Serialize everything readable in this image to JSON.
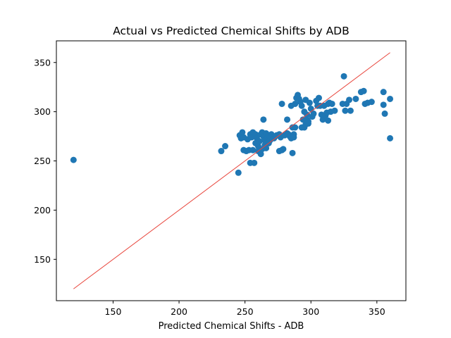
{
  "chart_data": {
    "type": "scatter",
    "title": "Actual vs Predicted Chemical Shifts by ADB",
    "xlabel": "Predicted Chemical Shifts - ADB",
    "ylabel": "",
    "xlim": [
      107,
      372
    ],
    "ylim": [
      108,
      372
    ],
    "xticks": [
      150,
      200,
      250,
      300,
      350
    ],
    "yticks": [
      150,
      200,
      250,
      300,
      350
    ],
    "grid": false,
    "legend": "none",
    "point_color": "#1f77b4",
    "reference_line": {
      "color": "#e8453c",
      "x": [
        120,
        360
      ],
      "y": [
        120,
        360
      ]
    },
    "points": [
      [
        120,
        251
      ],
      [
        232,
        260
      ],
      [
        235,
        265
      ],
      [
        245,
        238
      ],
      [
        246,
        276
      ],
      [
        247,
        273
      ],
      [
        248,
        279
      ],
      [
        249,
        261
      ],
      [
        249,
        274
      ],
      [
        251,
        260
      ],
      [
        252,
        272
      ],
      [
        253,
        261
      ],
      [
        254,
        277
      ],
      [
        254,
        248
      ],
      [
        255,
        274
      ],
      [
        256,
        279
      ],
      [
        256,
        261
      ],
      [
        257,
        248
      ],
      [
        258,
        268
      ],
      [
        258,
        277
      ],
      [
        259,
        273
      ],
      [
        260,
        265
      ],
      [
        260,
        260
      ],
      [
        261,
        270
      ],
      [
        262,
        277
      ],
      [
        262,
        257
      ],
      [
        263,
        279
      ],
      [
        263,
        262
      ],
      [
        264,
        292
      ],
      [
        264,
        275
      ],
      [
        265,
        271
      ],
      [
        265,
        266
      ],
      [
        266,
        278
      ],
      [
        266,
        263
      ],
      [
        267,
        273
      ],
      [
        268,
        276
      ],
      [
        268,
        268
      ],
      [
        269,
        271
      ],
      [
        270,
        274
      ],
      [
        270,
        277
      ],
      [
        272,
        273
      ],
      [
        273,
        275
      ],
      [
        274,
        276
      ],
      [
        276,
        277
      ],
      [
        276,
        260
      ],
      [
        277,
        274
      ],
      [
        278,
        261
      ],
      [
        278,
        308
      ],
      [
        279,
        262
      ],
      [
        280,
        276
      ],
      [
        282,
        292
      ],
      [
        282,
        278
      ],
      [
        283,
        277
      ],
      [
        284,
        275
      ],
      [
        285,
        273
      ],
      [
        285,
        306
      ],
      [
        286,
        284
      ],
      [
        286,
        258
      ],
      [
        287,
        277
      ],
      [
        287,
        274
      ],
      [
        288,
        284
      ],
      [
        288,
        308
      ],
      [
        289,
        314
      ],
      [
        290,
        317
      ],
      [
        291,
        313
      ],
      [
        292,
        310
      ],
      [
        293,
        306
      ],
      [
        293,
        284
      ],
      [
        294,
        292
      ],
      [
        295,
        300
      ],
      [
        295,
        284
      ],
      [
        296,
        287
      ],
      [
        296,
        312
      ],
      [
        297,
        292
      ],
      [
        297,
        297
      ],
      [
        298,
        288
      ],
      [
        298,
        290
      ],
      [
        299,
        309
      ],
      [
        300,
        303
      ],
      [
        301,
        295
      ],
      [
        302,
        298
      ],
      [
        304,
        311
      ],
      [
        305,
        306
      ],
      [
        306,
        314
      ],
      [
        307,
        306
      ],
      [
        308,
        297
      ],
      [
        309,
        292
      ],
      [
        310,
        306
      ],
      [
        311,
        296
      ],
      [
        312,
        299
      ],
      [
        313,
        291
      ],
      [
        313,
        308
      ],
      [
        314,
        309
      ],
      [
        315,
        300
      ],
      [
        316,
        308
      ],
      [
        318,
        301
      ],
      [
        324,
        308
      ],
      [
        325,
        336
      ],
      [
        326,
        301
      ],
      [
        327,
        308
      ],
      [
        329,
        312
      ],
      [
        330,
        301
      ],
      [
        334,
        313
      ],
      [
        338,
        320
      ],
      [
        340,
        321
      ],
      [
        341,
        308
      ],
      [
        343,
        309
      ],
      [
        346,
        310
      ],
      [
        355,
        320
      ],
      [
        355,
        307
      ],
      [
        356,
        298
      ],
      [
        360,
        313
      ],
      [
        360,
        273
      ]
    ]
  }
}
